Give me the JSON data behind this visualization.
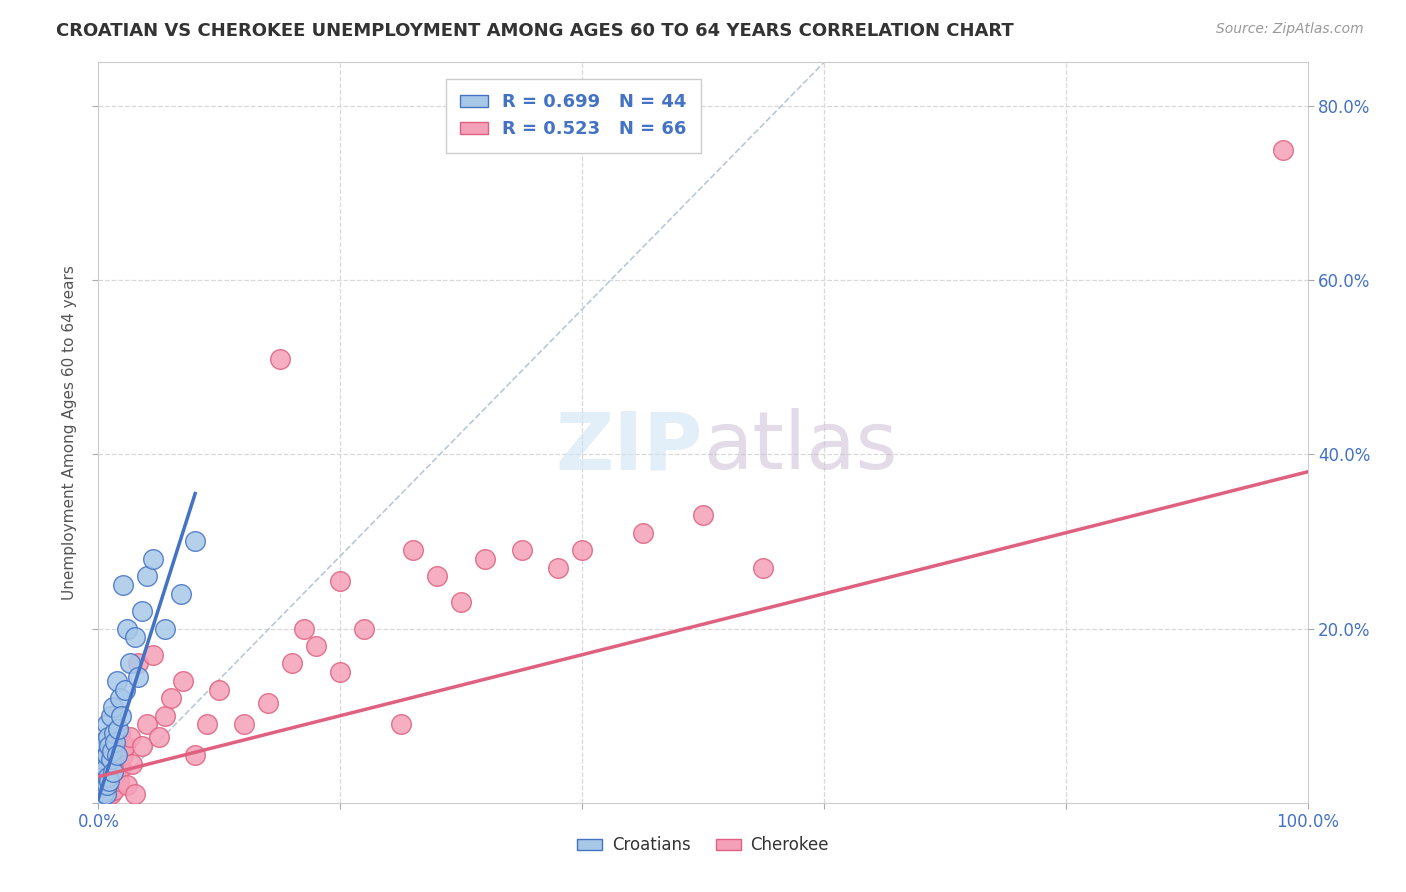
{
  "title": "CROATIAN VS CHEROKEE UNEMPLOYMENT AMONG AGES 60 TO 64 YEARS CORRELATION CHART",
  "source": "Source: ZipAtlas.com",
  "ylabel": "Unemployment Among Ages 60 to 64 years",
  "xlim": [
    0,
    1.0
  ],
  "ylim": [
    0,
    0.85
  ],
  "croatian_R": 0.699,
  "croatian_N": 44,
  "cherokee_R": 0.523,
  "cherokee_N": 66,
  "croatian_color": "#a8c8e8",
  "cherokee_color": "#f4a0b8",
  "croatian_line_color": "#4472c4",
  "cherokee_line_color": "#e06080",
  "ref_line_color": "#b8c8d8",
  "background_color": "#ffffff",
  "grid_color": "#d8d8d8",
  "cro_x": [
    0.001,
    0.002,
    0.002,
    0.003,
    0.003,
    0.003,
    0.004,
    0.004,
    0.005,
    0.005,
    0.005,
    0.006,
    0.006,
    0.007,
    0.007,
    0.007,
    0.008,
    0.008,
    0.009,
    0.009,
    0.01,
    0.01,
    0.011,
    0.012,
    0.012,
    0.013,
    0.014,
    0.015,
    0.015,
    0.016,
    0.018,
    0.019,
    0.02,
    0.022,
    0.024,
    0.026,
    0.03,
    0.033,
    0.036,
    0.04,
    0.045,
    0.055,
    0.068,
    0.08
  ],
  "cro_y": [
    0.005,
    0.01,
    0.02,
    0.008,
    0.03,
    0.05,
    0.015,
    0.06,
    0.012,
    0.025,
    0.07,
    0.01,
    0.04,
    0.02,
    0.055,
    0.09,
    0.03,
    0.075,
    0.025,
    0.065,
    0.05,
    0.1,
    0.06,
    0.035,
    0.11,
    0.08,
    0.07,
    0.055,
    0.14,
    0.085,
    0.12,
    0.1,
    0.25,
    0.13,
    0.2,
    0.16,
    0.19,
    0.145,
    0.22,
    0.26,
    0.28,
    0.2,
    0.24,
    0.3
  ],
  "che_x": [
    0.001,
    0.002,
    0.002,
    0.003,
    0.003,
    0.004,
    0.004,
    0.005,
    0.005,
    0.005,
    0.006,
    0.006,
    0.007,
    0.007,
    0.008,
    0.008,
    0.009,
    0.01,
    0.01,
    0.011,
    0.012,
    0.013,
    0.014,
    0.015,
    0.016,
    0.017,
    0.018,
    0.019,
    0.02,
    0.022,
    0.024,
    0.026,
    0.028,
    0.03,
    0.033,
    0.036,
    0.04,
    0.045,
    0.05,
    0.055,
    0.06,
    0.07,
    0.08,
    0.09,
    0.1,
    0.12,
    0.14,
    0.16,
    0.18,
    0.2,
    0.22,
    0.25,
    0.28,
    0.3,
    0.32,
    0.35,
    0.38,
    0.4,
    0.45,
    0.5,
    0.15,
    0.17,
    0.2,
    0.26,
    0.98,
    0.55
  ],
  "che_y": [
    0.005,
    0.008,
    0.015,
    0.01,
    0.02,
    0.008,
    0.025,
    0.005,
    0.018,
    0.03,
    0.012,
    0.035,
    0.008,
    0.025,
    0.015,
    0.04,
    0.02,
    0.01,
    0.035,
    0.025,
    0.05,
    0.015,
    0.06,
    0.035,
    0.07,
    0.025,
    0.08,
    0.04,
    0.055,
    0.065,
    0.02,
    0.075,
    0.045,
    0.01,
    0.16,
    0.065,
    0.09,
    0.17,
    0.075,
    0.1,
    0.12,
    0.14,
    0.055,
    0.09,
    0.13,
    0.09,
    0.115,
    0.16,
    0.18,
    0.15,
    0.2,
    0.09,
    0.26,
    0.23,
    0.28,
    0.29,
    0.27,
    0.29,
    0.31,
    0.33,
    0.51,
    0.2,
    0.255,
    0.29,
    0.75,
    0.27
  ],
  "cro_line_x": [
    0.0,
    0.08
  ],
  "cro_line_y": [
    0.005,
    0.355
  ],
  "che_line_x": [
    0.0,
    1.0
  ],
  "che_line_y": [
    0.03,
    0.38
  ],
  "ref_line_x": [
    0.0,
    0.6
  ],
  "ref_line_y": [
    0.0,
    0.85
  ]
}
